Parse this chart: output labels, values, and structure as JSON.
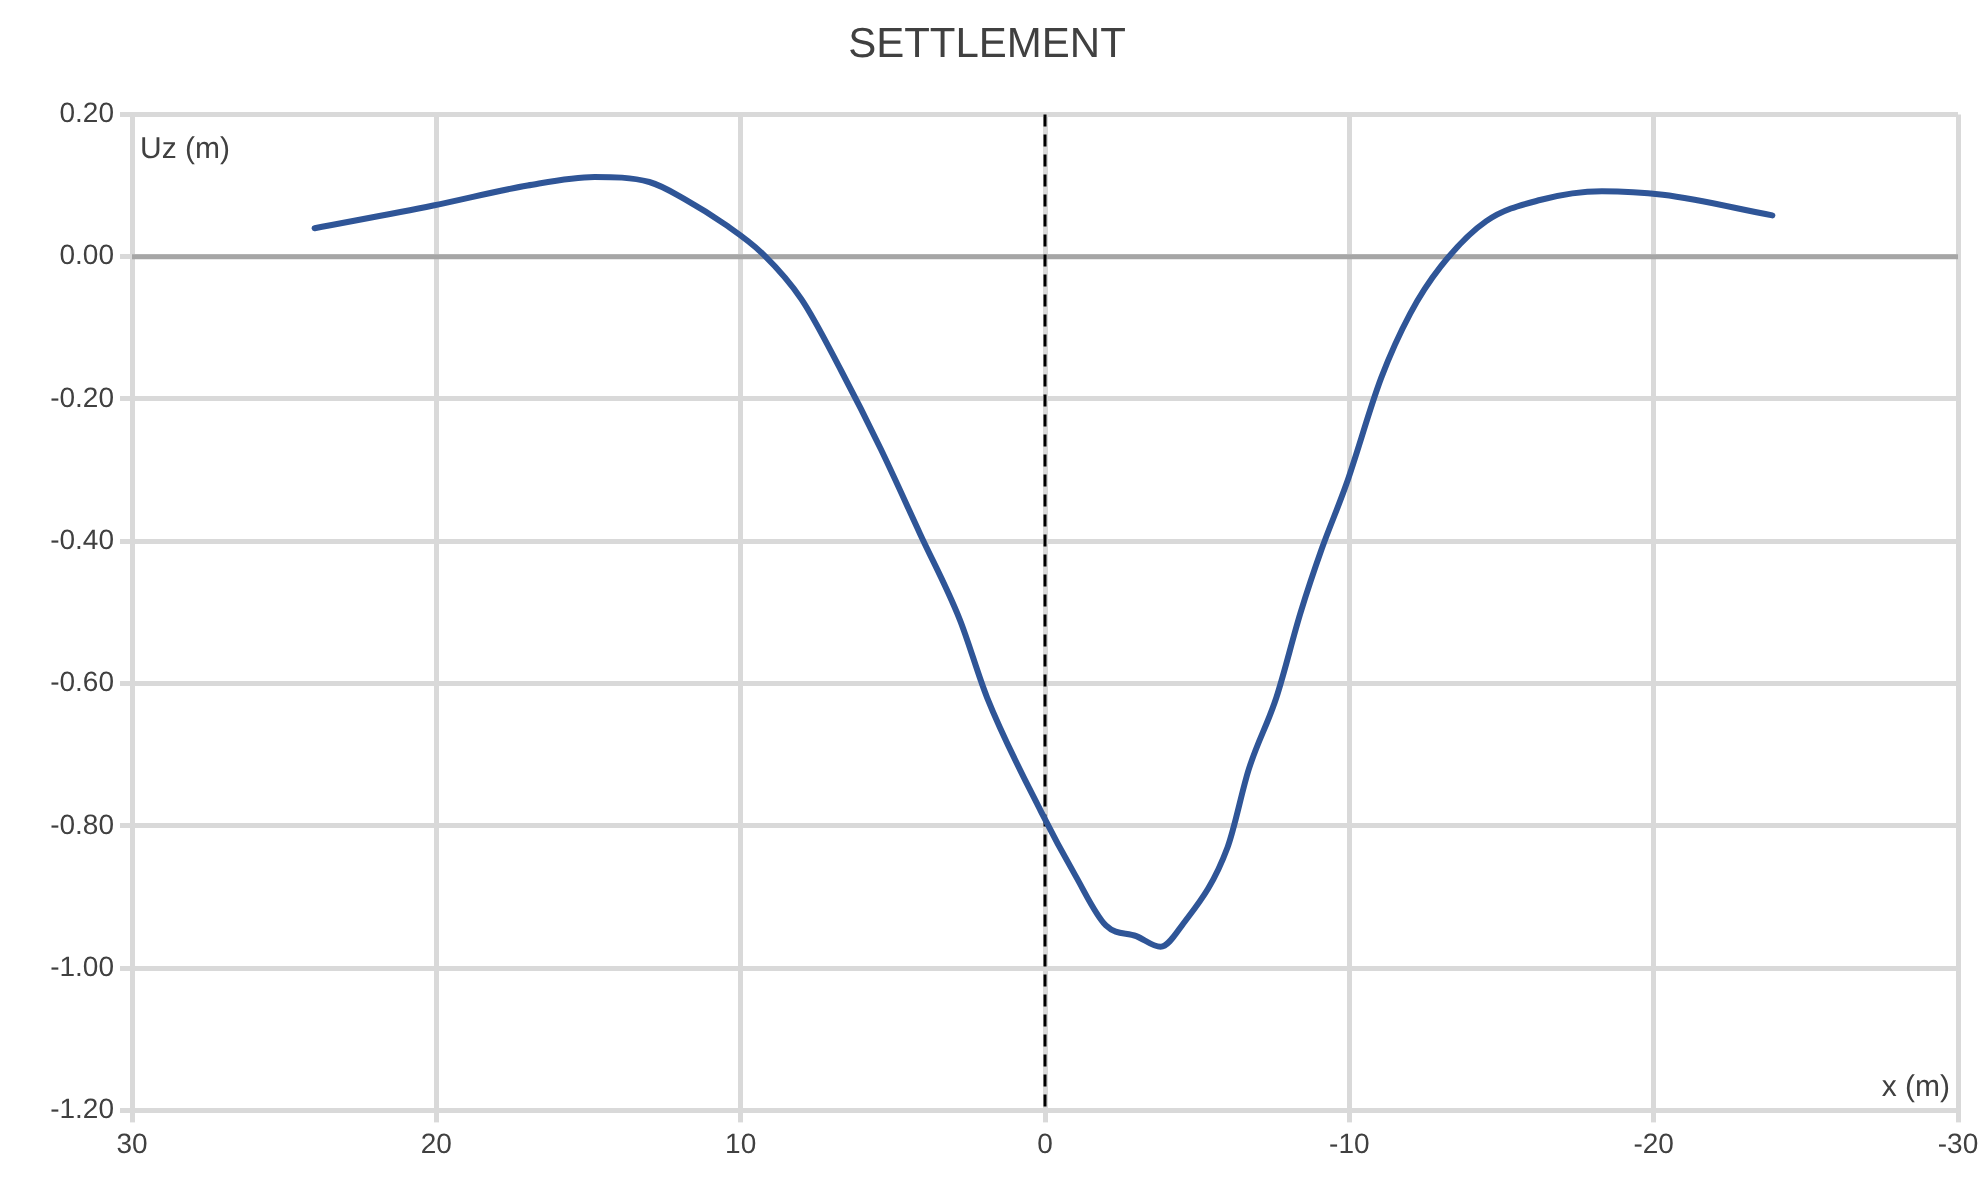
{
  "chart_data": {
    "type": "line",
    "title": "SETTLEMENT",
    "xlabel": "x (m)",
    "ylabel": "Uz (m)",
    "series": [
      {
        "color": "#2f5597",
        "x": [
          24,
          20.1,
          17,
          14.8,
          13,
          11.8,
          10.5,
          9.3,
          8,
          6.7,
          5.4,
          4.1,
          2.8,
          1.9,
          0.13,
          -1,
          -2,
          -3,
          -3.8,
          -4.5,
          -6,
          -6.7,
          -7.6,
          -8.4,
          -9.1,
          -9.9,
          -11.05,
          -12,
          -13,
          -14.5,
          -16.3,
          -18.3,
          -20.3,
          -23.9
        ],
        "values": [
          0.04,
          0.072,
          0.1,
          0.112,
          0.105,
          0.08,
          0.045,
          0.005,
          -0.06,
          -0.16,
          -0.27,
          -0.39,
          -0.51,
          -0.62,
          -0.78,
          -0.87,
          -0.94,
          -0.955,
          -0.97,
          -0.94,
          -0.83,
          -0.72,
          -0.62,
          -0.5,
          -0.41,
          -0.32,
          -0.17,
          -0.08,
          -0.014,
          0.05,
          0.08,
          0.092,
          0.087,
          0.058
        ]
      }
    ],
    "xlim": [
      30,
      -30
    ],
    "xticks": [
      30,
      20,
      10,
      0,
      -10,
      -20,
      -30
    ],
    "ylim": [
      -1.2,
      0.2
    ],
    "yticks": [
      {
        "value": -1.2,
        "label": "-1.20"
      },
      {
        "value": -1,
        "label": "-1.00"
      },
      {
        "value": -0.8,
        "label": "-0.80"
      },
      {
        "value": -0.6,
        "label": "-0.60"
      },
      {
        "value": -0.4,
        "label": "-0.40"
      },
      {
        "value": -0.2,
        "label": "-0.20"
      },
      {
        "value": 0,
        "label": "0.00"
      },
      {
        "value": 0.2,
        "label": "0.20"
      }
    ],
    "ref_lines": [
      {
        "axis": "y",
        "value": 0,
        "color": "#a6a6a6",
        "line_style": "solid"
      },
      {
        "axis": "x",
        "value": 0,
        "color": "#000000",
        "line_style": "dashed"
      }
    ],
    "grid": true,
    "legend": false,
    "marker": "none",
    "line_style": "solid"
  }
}
